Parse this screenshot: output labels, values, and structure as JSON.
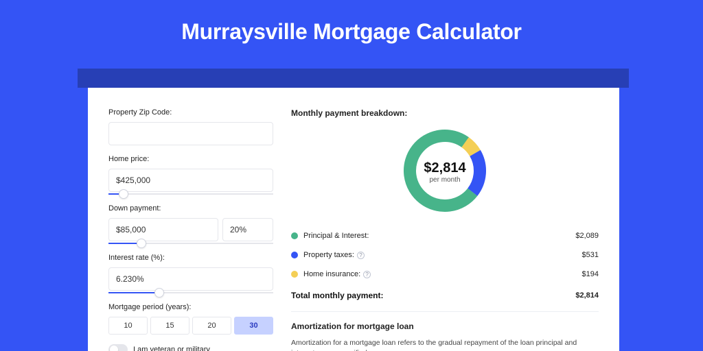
{
  "title": "Murraysville Mortgage Calculator",
  "colors": {
    "page_bg": "#3454f5",
    "banner_bg": "#273fb5",
    "card_bg": "#ffffff",
    "accent": "#3454f5"
  },
  "form": {
    "zip": {
      "label": "Property Zip Code:",
      "value": ""
    },
    "home_price": {
      "label": "Home price:",
      "value": "$425,000",
      "slider_pct": 9
    },
    "down_payment": {
      "label": "Down payment:",
      "value": "$85,000",
      "pct_value": "20%",
      "slider_pct": 20
    },
    "interest_rate": {
      "label": "Interest rate (%):",
      "value": "6.230%",
      "slider_pct": 31
    },
    "period": {
      "label": "Mortgage period (years):",
      "options": [
        "10",
        "15",
        "20",
        "30"
      ],
      "active_index": 3
    },
    "veteran": {
      "label": "I am veteran or military",
      "on": false
    }
  },
  "breakdown": {
    "title": "Monthly payment breakdown:",
    "donut": {
      "center_amount": "$2,814",
      "center_sub": "per month",
      "ring_width": 18,
      "radius": 60,
      "bg": "#ffffff",
      "segments": [
        {
          "label": "Principal & Interest",
          "color": "#47b48a",
          "value": 2089
        },
        {
          "label": "Property taxes",
          "color": "#3454f5",
          "value": 531
        },
        {
          "label": "Home insurance",
          "color": "#f4cf56",
          "value": 194
        }
      ]
    },
    "rows": [
      {
        "dot": "#47b48a",
        "label": "Principal & Interest:",
        "info": false,
        "amount": "$2,089"
      },
      {
        "dot": "#3454f5",
        "label": "Property taxes:",
        "info": true,
        "amount": "$531"
      },
      {
        "dot": "#f4cf56",
        "label": "Home insurance:",
        "info": true,
        "amount": "$194"
      }
    ],
    "total": {
      "label": "Total monthly payment:",
      "amount": "$2,814"
    }
  },
  "amortization": {
    "title": "Amortization for mortgage loan",
    "text": "Amortization for a mortgage loan refers to the gradual repayment of the loan principal and interest over a specified"
  }
}
